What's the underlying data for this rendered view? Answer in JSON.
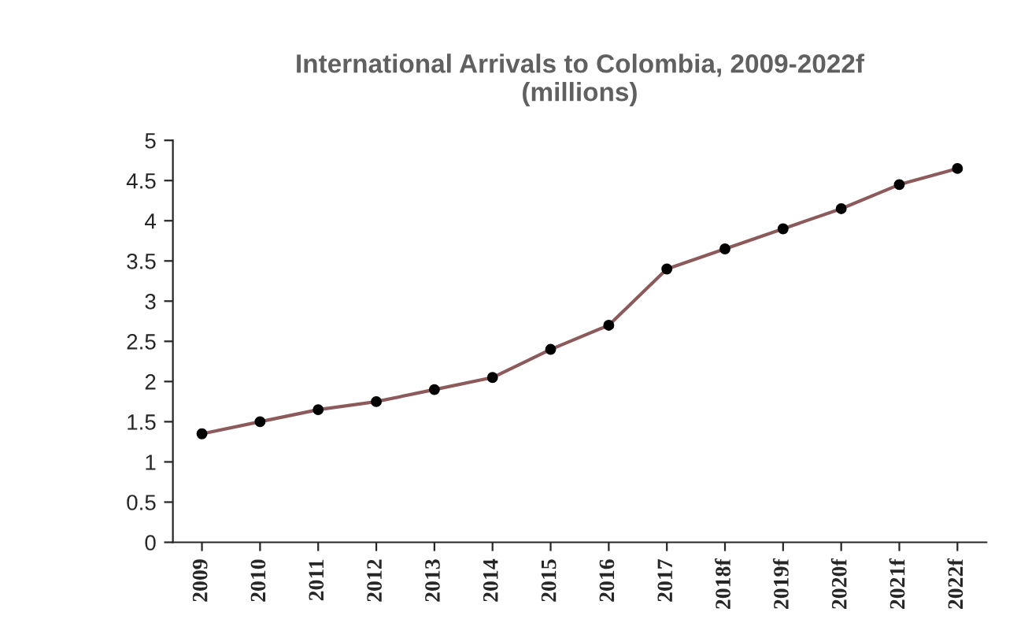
{
  "chart_data": {
    "type": "line",
    "title": "International Arrivals to Colombia, 2009-2022f\n(millions)",
    "categories": [
      "2009",
      "2010",
      "2011",
      "2012",
      "2013",
      "2014",
      "2015",
      "2016",
      "2017",
      "2018f",
      "2019f",
      "2020f",
      "2021f",
      "2022f"
    ],
    "series": [
      {
        "color": "#8c5a5a",
        "values": [
          1.35,
          1.5,
          1.65,
          1.75,
          1.9,
          2.05,
          2.4,
          2.7,
          3.4,
          3.65,
          3.9,
          4.15,
          4.45,
          4.65
        ]
      }
    ],
    "ylim": [
      0,
      5
    ],
    "yticks": [
      0,
      0.5,
      1,
      1.5,
      2,
      2.5,
      3,
      3.5,
      4,
      4.5,
      5
    ],
    "marker": "circle",
    "grid": false,
    "legend": false
  }
}
